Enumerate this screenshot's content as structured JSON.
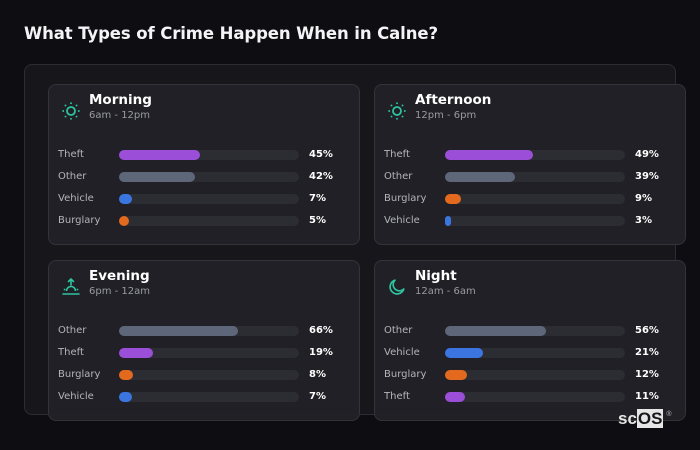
{
  "title": "What Types of Crime Happen When in Calne?",
  "colors": {
    "accent_icon": "#2ec4a0",
    "Theft": "#9b4fd9",
    "Other": "#5e6779",
    "Vehicle": "#3b76e0",
    "Burglary": "#e2691e",
    "track": "#2c2c33"
  },
  "cards": [
    {
      "name": "Morning",
      "range": "6am - 12pm",
      "icon": "sun-icon",
      "rows": [
        {
          "label": "Theft",
          "value": 45,
          "display": "45%"
        },
        {
          "label": "Other",
          "value": 42,
          "display": "42%"
        },
        {
          "label": "Vehicle",
          "value": 7,
          "display": "7%"
        },
        {
          "label": "Burglary",
          "value": 5,
          "display": "5%"
        }
      ]
    },
    {
      "name": "Afternoon",
      "range": "12pm - 6pm",
      "icon": "sun-icon",
      "rows": [
        {
          "label": "Theft",
          "value": 49,
          "display": "49%"
        },
        {
          "label": "Other",
          "value": 39,
          "display": "39%"
        },
        {
          "label": "Burglary",
          "value": 9,
          "display": "9%"
        },
        {
          "label": "Vehicle",
          "value": 3,
          "display": "3%"
        }
      ]
    },
    {
      "name": "Evening",
      "range": "6pm - 12am",
      "icon": "sunset-icon",
      "rows": [
        {
          "label": "Other",
          "value": 66,
          "display": "66%"
        },
        {
          "label": "Theft",
          "value": 19,
          "display": "19%"
        },
        {
          "label": "Burglary",
          "value": 8,
          "display": "8%"
        },
        {
          "label": "Vehicle",
          "value": 7,
          "display": "7%"
        }
      ]
    },
    {
      "name": "Night",
      "range": "12am - 6am",
      "icon": "moon-icon",
      "rows": [
        {
          "label": "Other",
          "value": 56,
          "display": "56%"
        },
        {
          "label": "Vehicle",
          "value": 21,
          "display": "21%"
        },
        {
          "label": "Burglary",
          "value": 12,
          "display": "12%"
        },
        {
          "label": "Theft",
          "value": 11,
          "display": "11%"
        }
      ]
    }
  ],
  "brand": {
    "prefix": "sc",
    "highlight": "OS",
    "mark": "®"
  },
  "chart_data": {
    "type": "bar",
    "orientation": "horizontal",
    "title": "What Types of Crime Happen When in Calne?",
    "xlabel": "",
    "ylabel": "",
    "xlim": [
      0,
      100
    ],
    "unit": "%",
    "grid": false,
    "legend": "none",
    "panels": [
      {
        "title": "Morning",
        "subtitle": "6am - 12pm",
        "categories": [
          "Theft",
          "Other",
          "Vehicle",
          "Burglary"
        ],
        "values": [
          45,
          42,
          7,
          5
        ]
      },
      {
        "title": "Afternoon",
        "subtitle": "12pm - 6pm",
        "categories": [
          "Theft",
          "Other",
          "Burglary",
          "Vehicle"
        ],
        "values": [
          49,
          39,
          9,
          3
        ]
      },
      {
        "title": "Evening",
        "subtitle": "6pm - 12am",
        "categories": [
          "Other",
          "Theft",
          "Burglary",
          "Vehicle"
        ],
        "values": [
          66,
          19,
          8,
          7
        ]
      },
      {
        "title": "Night",
        "subtitle": "12am - 6am",
        "categories": [
          "Other",
          "Vehicle",
          "Burglary",
          "Theft"
        ],
        "values": [
          56,
          21,
          12,
          11
        ]
      }
    ]
  }
}
